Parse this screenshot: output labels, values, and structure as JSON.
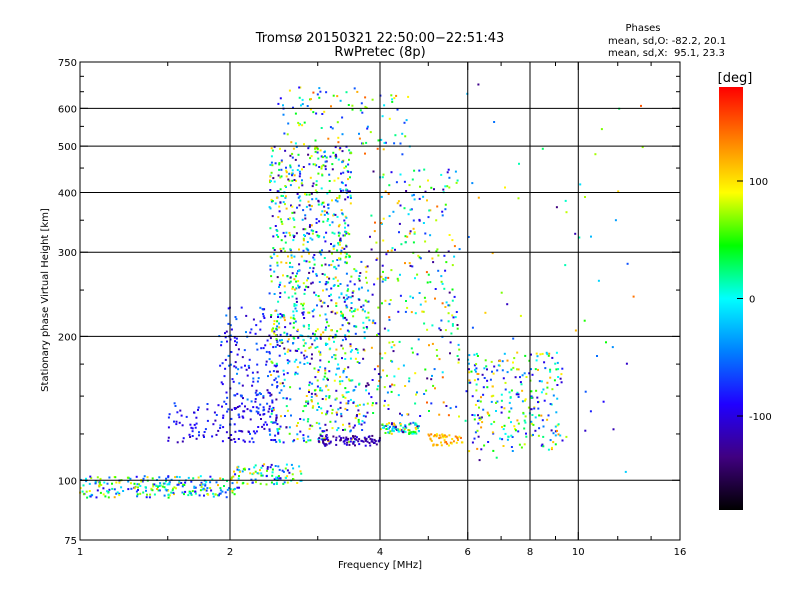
{
  "chart_data": {
    "type": "scatter",
    "title": "Tromsø 20150321 22:50:00−22:51:43",
    "subtitle": "RwPretec (8p)",
    "xlabel": "Frequency [MHz]",
    "ylabel": "Stationary phase Virtual Height [km]",
    "x_scale": "log",
    "y_scale": "log",
    "xlim": [
      1,
      16
    ],
    "ylim": [
      75,
      750
    ],
    "x_ticks": [
      "1",
      "2",
      "4",
      "6",
      "8",
      "10",
      "16"
    ],
    "y_ticks": [
      "75",
      "100",
      "200",
      "300",
      "400",
      "500",
      "600",
      "750"
    ],
    "x_gridlines": [
      2,
      4,
      6,
      8,
      10
    ],
    "y_gridlines": [
      100,
      200,
      300,
      400,
      500,
      600
    ],
    "grid": true,
    "legend": {
      "heading": "Phases",
      "line1": "mean, sd,O: -82.2, 20.1",
      "line2": "mean, sd,X:  95.1, 23.3",
      "placement": "top-right"
    },
    "colorbar": {
      "label": "[deg]",
      "ticks": [
        "100",
        "0",
        "-100"
      ],
      "tick_values": [
        100,
        0,
        -100
      ],
      "range": [
        -180,
        180
      ],
      "colormap": [
        "#000000",
        "#400080",
        "#2000ff",
        "#0080ff",
        "#00ffff",
        "#00ff00",
        "#ffff00",
        "#ff8000",
        "#ff0000"
      ]
    },
    "point_groups": [
      {
        "x": [
          1.0,
          2.1
        ],
        "y": [
          92,
          102
        ],
        "n": 240,
        "phase": [
          -100,
          120
        ]
      },
      {
        "x": [
          2.0,
          2.8
        ],
        "y": [
          98,
          108
        ],
        "n": 90,
        "phase": [
          -110,
          110
        ]
      },
      {
        "x": [
          1.5,
          2.5
        ],
        "y": [
          120,
          145
        ],
        "n": 140,
        "phase": [
          -120,
          -60
        ]
      },
      {
        "x": [
          1.9,
          2.5
        ],
        "y": [
          140,
          230
        ],
        "n": 150,
        "phase": [
          -120,
          -40
        ]
      },
      {
        "x": [
          2.4,
          3.8
        ],
        "y": [
          120,
          290
        ],
        "n": 650,
        "phase": [
          -140,
          120
        ]
      },
      {
        "x": [
          2.4,
          3.5
        ],
        "y": [
          290,
          500
        ],
        "n": 380,
        "phase": [
          -140,
          120
        ]
      },
      {
        "x": [
          2.5,
          4.6
        ],
        "y": [
          480,
          670
        ],
        "n": 110,
        "phase": [
          -100,
          150
        ]
      },
      {
        "x": [
          3.0,
          4.0
        ],
        "y": [
          118,
          124
        ],
        "n": 90,
        "phase": [
          -140,
          -90
        ]
      },
      {
        "x": [
          4.0,
          4.8
        ],
        "y": [
          125,
          132
        ],
        "n": 80,
        "phase": [
          -140,
          120
        ]
      },
      {
        "x": [
          3.8,
          5.8
        ],
        "y": [
          135,
          450
        ],
        "n": 300,
        "phase": [
          -140,
          150
        ]
      },
      {
        "x": [
          5.0,
          5.9
        ],
        "y": [
          118,
          125
        ],
        "n": 50,
        "phase": [
          90,
          150
        ]
      },
      {
        "x": [
          6.0,
          9.3
        ],
        "y": [
          115,
          185
        ],
        "n": 260,
        "phase": [
          -120,
          130
        ]
      },
      {
        "x": [
          5.8,
          13.5
        ],
        "y": [
          100,
          700
        ],
        "n": 60,
        "phase": [
          -140,
          150
        ]
      }
    ],
    "seed": 21
  }
}
